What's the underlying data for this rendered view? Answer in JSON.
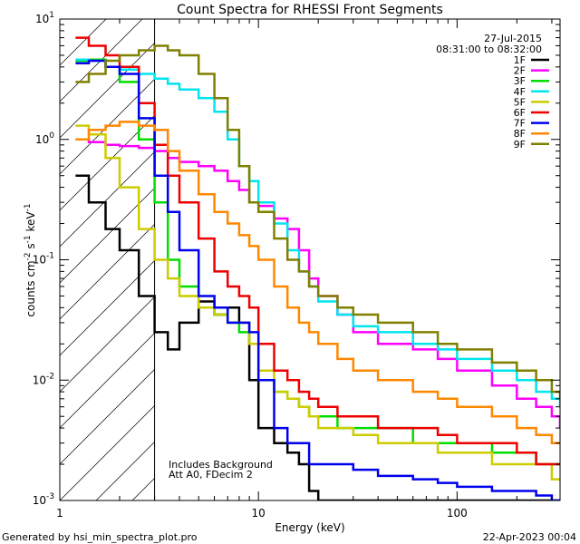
{
  "chart_data": {
    "type": "line",
    "title": "Count Spectra for RHESSI Front Segments",
    "xlabel": "Energy (keV)",
    "ylabel": {
      "base": "counts cm",
      "exp1": "-2",
      "mid1": " s",
      "exp2": "-1",
      "mid2": " keV",
      "exp3": "-1"
    },
    "xscale": "log",
    "yscale": "log",
    "xlim": [
      1,
      330
    ],
    "ylim": [
      0.001,
      10
    ],
    "x_ticks": [
      {
        "value": 1,
        "label": "1"
      },
      {
        "value": 10,
        "label": "10"
      },
      {
        "value": 100,
        "label": "100"
      }
    ],
    "y_ticks": [
      {
        "value": 0.001,
        "base": "10",
        "exp": "-3"
      },
      {
        "value": 0.01,
        "base": "10",
        "exp": "-2"
      },
      {
        "value": 0.1,
        "base": "10",
        "exp": "-1"
      },
      {
        "value": 1,
        "base": "10",
        "exp": "0"
      },
      {
        "value": 10,
        "base": "10",
        "exp": "1"
      }
    ],
    "date": "27-Jul-2015",
    "time_range": "08:31:00 to 08:32:00",
    "hatch_limit_kev": 3,
    "annotations": [
      "Includes Background",
      "Att A0, FDecim 2"
    ],
    "series": [
      {
        "name": "1F",
        "color": "#000000",
        "x": [
          1.2,
          1.4,
          1.7,
          2.0,
          2.5,
          3.0,
          3.5,
          4.0,
          5.0,
          6.0,
          7.0,
          8.0,
          9.0,
          10.0,
          12.0,
          14.0,
          16.0,
          18.0,
          20.0
        ],
        "y": [
          0.5,
          0.3,
          0.18,
          0.12,
          0.05,
          0.025,
          0.018,
          0.03,
          0.045,
          0.035,
          0.04,
          0.03,
          0.01,
          0.004,
          0.003,
          0.0025,
          0.002,
          0.0012,
          0.001
        ]
      },
      {
        "name": "2F",
        "color": "#ff00ff",
        "x": [
          1.2,
          1.4,
          1.7,
          2.0,
          2.5,
          3.0,
          3.5,
          4.0,
          5.0,
          6.0,
          7.0,
          8.0,
          9.0,
          10.0,
          12.0,
          14.0,
          16.0,
          18.0,
          20.0,
          25.0,
          30.0,
          40.0,
          60.0,
          80.0,
          100.0,
          150.0,
          200.0,
          250.0,
          300.0,
          330.0
        ],
        "y": [
          1.0,
          0.95,
          0.9,
          0.88,
          0.85,
          0.8,
          0.7,
          0.65,
          0.6,
          0.55,
          0.45,
          0.38,
          0.3,
          0.28,
          0.22,
          0.18,
          0.12,
          0.07,
          0.05,
          0.035,
          0.025,
          0.02,
          0.018,
          0.015,
          0.012,
          0.009,
          0.007,
          0.006,
          0.005,
          0.004
        ]
      },
      {
        "name": "3F",
        "color": "#00dd00",
        "x": [
          1.2,
          1.4,
          1.7,
          2.0,
          2.5,
          3.0,
          3.5,
          4.0,
          5.0,
          6.0,
          7.0,
          8.0,
          9.0,
          10.0,
          12.0,
          14.0,
          16.0,
          18.0,
          20.0,
          25.0,
          30.0,
          40.0,
          60.0,
          80.0,
          100.0,
          150.0,
          200.0,
          250.0,
          300.0,
          330.0
        ],
        "y": [
          4.5,
          4.6,
          4.0,
          3.0,
          1.0,
          0.3,
          0.1,
          0.06,
          0.04,
          0.035,
          0.03,
          0.025,
          0.02,
          0.01,
          0.008,
          0.007,
          0.006,
          0.005,
          0.005,
          0.004,
          0.004,
          0.004,
          0.003,
          0.003,
          0.003,
          0.0025,
          0.0025,
          0.002,
          0.002,
          0.002
        ]
      },
      {
        "name": "4F",
        "color": "#00e5ee",
        "x": [
          1.2,
          1.4,
          1.7,
          2.0,
          2.5,
          3.0,
          3.5,
          4.0,
          5.0,
          6.0,
          7.0,
          8.0,
          9.0,
          10.0,
          12.0,
          14.0,
          16.0,
          18.0,
          20.0,
          25.0,
          30.0,
          40.0,
          60.0,
          80.0,
          100.0,
          150.0,
          200.0,
          250.0,
          300.0,
          330.0
        ],
        "y": [
          4.6,
          4.5,
          4.0,
          3.8,
          3.5,
          3.2,
          2.9,
          2.6,
          2.2,
          1.7,
          1.0,
          0.6,
          0.45,
          0.3,
          0.2,
          0.12,
          0.08,
          0.06,
          0.045,
          0.035,
          0.028,
          0.025,
          0.02,
          0.018,
          0.015,
          0.012,
          0.01,
          0.008,
          0.007,
          0.006
        ]
      },
      {
        "name": "5F",
        "color": "#cccc00",
        "x": [
          1.2,
          1.4,
          1.7,
          2.0,
          2.5,
          3.0,
          3.5,
          4.0,
          5.0,
          6.0,
          7.0,
          8.0,
          9.0,
          10.0,
          12.0,
          14.0,
          16.0,
          18.0,
          20.0,
          25.0,
          30.0,
          40.0,
          60.0,
          80.0,
          100.0,
          150.0,
          200.0,
          250.0,
          300.0,
          330.0
        ],
        "y": [
          1.3,
          1.1,
          0.7,
          0.4,
          0.18,
          0.1,
          0.07,
          0.05,
          0.04,
          0.035,
          0.03,
          0.03,
          0.02,
          0.012,
          0.008,
          0.007,
          0.006,
          0.005,
          0.004,
          0.004,
          0.0035,
          0.003,
          0.003,
          0.0025,
          0.0025,
          0.002,
          0.002,
          0.002,
          0.0015,
          0.0015
        ]
      },
      {
        "name": "6F",
        "color": "#ee0000",
        "x": [
          1.2,
          1.4,
          1.7,
          2.0,
          2.5,
          3.0,
          3.5,
          4.0,
          5.0,
          6.0,
          7.0,
          8.0,
          9.0,
          10.0,
          12.0,
          14.0,
          16.0,
          18.0,
          20.0,
          25.0,
          30.0,
          40.0,
          60.0,
          80.0,
          100.0,
          150.0,
          200.0,
          250.0,
          300.0,
          330.0
        ],
        "y": [
          7.0,
          6.0,
          5.0,
          4.0,
          2.0,
          0.9,
          0.5,
          0.3,
          0.15,
          0.08,
          0.06,
          0.05,
          0.04,
          0.02,
          0.012,
          0.01,
          0.008,
          0.007,
          0.006,
          0.005,
          0.005,
          0.004,
          0.004,
          0.0035,
          0.003,
          0.003,
          0.0025,
          0.002,
          0.002,
          0.002
        ]
      },
      {
        "name": "7F",
        "color": "#0000ee",
        "x": [
          1.2,
          1.4,
          1.7,
          2.0,
          2.5,
          3.0,
          3.5,
          4.0,
          5.0,
          6.0,
          7.0,
          8.0,
          9.0,
          10.0,
          12.0,
          14.0,
          16.0,
          18.0,
          20.0,
          25.0,
          30.0,
          40.0,
          60.0,
          80.0,
          100.0,
          150.0,
          200.0,
          250.0,
          300.0,
          330.0
        ],
        "y": [
          4.3,
          4.5,
          4.0,
          3.5,
          1.5,
          0.5,
          0.25,
          0.12,
          0.05,
          0.04,
          0.03,
          0.03,
          0.025,
          0.01,
          0.004,
          0.003,
          0.003,
          0.002,
          0.002,
          0.002,
          0.0018,
          0.0016,
          0.0015,
          0.0014,
          0.0013,
          0.0012,
          0.0012,
          0.0011,
          0.001,
          0.001
        ]
      },
      {
        "name": "8F",
        "color": "#ff8800",
        "x": [
          1.2,
          1.4,
          1.7,
          2.0,
          2.5,
          3.0,
          3.5,
          4.0,
          5.0,
          6.0,
          7.0,
          8.0,
          9.0,
          10.0,
          12.0,
          14.0,
          16.0,
          18.0,
          20.0,
          25.0,
          30.0,
          40.0,
          60.0,
          80.0,
          100.0,
          150.0,
          200.0,
          250.0,
          300.0,
          330.0
        ],
        "y": [
          1.0,
          1.2,
          1.3,
          1.4,
          1.3,
          1.2,
          0.8,
          0.55,
          0.35,
          0.25,
          0.2,
          0.16,
          0.13,
          0.1,
          0.06,
          0.04,
          0.03,
          0.025,
          0.02,
          0.015,
          0.012,
          0.01,
          0.008,
          0.007,
          0.006,
          0.005,
          0.004,
          0.0035,
          0.003,
          0.003
        ]
      },
      {
        "name": "9F",
        "color": "#808000",
        "x": [
          1.2,
          1.4,
          1.7,
          2.0,
          2.5,
          3.0,
          3.5,
          4.0,
          5.0,
          6.0,
          7.0,
          8.0,
          9.0,
          10.0,
          12.0,
          14.0,
          16.0,
          18.0,
          20.0,
          25.0,
          30.0,
          40.0,
          60.0,
          80.0,
          100.0,
          150.0,
          200.0,
          250.0,
          300.0,
          330.0
        ],
        "y": [
          3.0,
          3.5,
          4.5,
          5.0,
          5.5,
          6.0,
          5.5,
          5.0,
          3.5,
          2.2,
          1.2,
          0.6,
          0.3,
          0.25,
          0.15,
          0.1,
          0.08,
          0.06,
          0.05,
          0.04,
          0.035,
          0.03,
          0.025,
          0.02,
          0.018,
          0.014,
          0.012,
          0.01,
          0.008,
          0.007
        ]
      }
    ]
  },
  "footer": {
    "generator": "Generated by hsi_min_spectra_plot.pro",
    "timestamp": "22-Apr-2023 00:04"
  }
}
